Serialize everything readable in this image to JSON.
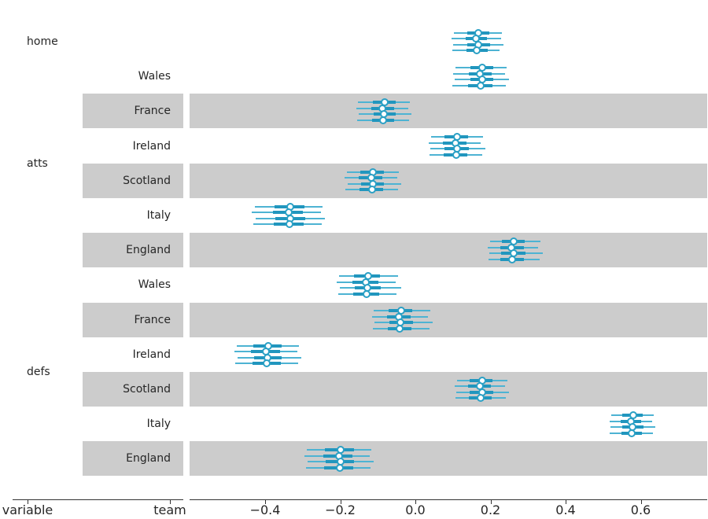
{
  "figure": {
    "background": "#ffffff",
    "band_color": "#cccccc",
    "text_color": "#262626",
    "accent": {
      "interval_thin": "#4db3d3",
      "interval_thick": "#2196be",
      "marker_edge": "#2aa0c5",
      "marker_fill": "#ffffff"
    }
  },
  "axes": {
    "category_axis": {
      "label_variable": "variable",
      "label_team": "team"
    },
    "x_axis": {
      "tick_labels": [
        "−0.4",
        "−0.2",
        "0.0",
        "0.2",
        "0.4",
        "0.6"
      ],
      "tick_values": [
        -0.4,
        -0.2,
        0.0,
        0.2,
        0.4,
        0.6
      ]
    }
  },
  "chart_data": {
    "type": "forest",
    "title": "",
    "xlabel": "",
    "ylabel": "",
    "legend_position": "none",
    "grid": false,
    "n_chains": 4,
    "marker": "open-circle",
    "xlim": [
      -0.6,
      0.78
    ],
    "x_ticks": [
      -0.4,
      -0.2,
      0.0,
      0.2,
      0.4,
      0.6
    ],
    "chain_format": [
      "low",
      "q1",
      "median",
      "q3",
      "high"
    ],
    "groups": [
      {
        "variable": "home",
        "rows": [
          {
            "team": "",
            "chains": [
              [
                0.103,
                0.139,
                0.168,
                0.197,
                0.23
              ],
              [
                0.097,
                0.135,
                0.162,
                0.191,
                0.228
              ],
              [
                0.101,
                0.138,
                0.167,
                0.198,
                0.235
              ],
              [
                0.099,
                0.136,
                0.164,
                0.193,
                0.224
              ]
            ]
          }
        ]
      },
      {
        "variable": "atts",
        "rows": [
          {
            "team": "Wales",
            "chains": [
              [
                0.106,
                0.147,
                0.178,
                0.207,
                0.243
              ],
              [
                0.101,
                0.143,
                0.172,
                0.203,
                0.238
              ],
              [
                0.104,
                0.146,
                0.177,
                0.208,
                0.249
              ],
              [
                0.098,
                0.141,
                0.174,
                0.205,
                0.24
              ]
            ]
          },
          {
            "team": "France",
            "chains": [
              [
                -0.152,
                -0.113,
                -0.082,
                -0.053,
                -0.014
              ],
              [
                -0.157,
                -0.117,
                -0.087,
                -0.057,
                -0.018
              ],
              [
                -0.15,
                -0.112,
                -0.083,
                -0.052,
                -0.01
              ],
              [
                -0.155,
                -0.115,
                -0.085,
                -0.056,
                -0.016
              ]
            ]
          },
          {
            "team": "Ireland",
            "chains": [
              [
                0.041,
                0.078,
                0.11,
                0.14,
                0.18
              ],
              [
                0.036,
                0.074,
                0.106,
                0.136,
                0.174
              ],
              [
                0.04,
                0.077,
                0.111,
                0.142,
                0.186
              ],
              [
                0.038,
                0.075,
                0.108,
                0.138,
                0.178
              ]
            ]
          },
          {
            "team": "Scotland",
            "chains": [
              [
                -0.183,
                -0.146,
                -0.113,
                -0.084,
                -0.044
              ],
              [
                -0.188,
                -0.15,
                -0.118,
                -0.088,
                -0.048
              ],
              [
                -0.181,
                -0.144,
                -0.114,
                -0.083,
                -0.038
              ],
              [
                -0.186,
                -0.148,
                -0.116,
                -0.086,
                -0.046
              ]
            ]
          },
          {
            "team": "Italy",
            "chains": [
              [
                -0.428,
                -0.374,
                -0.332,
                -0.295,
                -0.247
              ],
              [
                -0.436,
                -0.38,
                -0.338,
                -0.3,
                -0.252
              ],
              [
                -0.426,
                -0.372,
                -0.333,
                -0.294,
                -0.241
              ],
              [
                -0.432,
                -0.377,
                -0.336,
                -0.298,
                -0.25
              ]
            ]
          },
          {
            "team": "England",
            "chains": [
              [
                0.198,
                0.23,
                0.262,
                0.292,
                0.332
              ],
              [
                0.193,
                0.226,
                0.256,
                0.288,
                0.326
              ],
              [
                0.197,
                0.229,
                0.261,
                0.293,
                0.339
              ],
              [
                0.195,
                0.227,
                0.258,
                0.29,
                0.33
              ]
            ]
          }
        ]
      },
      {
        "variable": "defs",
        "rows": [
          {
            "team": "Wales",
            "chains": [
              [
                -0.203,
                -0.163,
                -0.126,
                -0.094,
                -0.047
              ],
              [
                -0.209,
                -0.168,
                -0.131,
                -0.098,
                -0.052
              ],
              [
                -0.201,
                -0.161,
                -0.127,
                -0.093,
                -0.038
              ],
              [
                -0.206,
                -0.165,
                -0.129,
                -0.096,
                -0.05
              ]
            ]
          },
          {
            "team": "France",
            "chains": [
              [
                -0.11,
                -0.072,
                -0.038,
                -0.008,
                0.04
              ],
              [
                -0.115,
                -0.076,
                -0.043,
                -0.012,
                0.034
              ],
              [
                -0.108,
                -0.07,
                -0.039,
                -0.007,
                0.046
              ],
              [
                -0.113,
                -0.074,
                -0.041,
                -0.01,
                0.038
              ]
            ]
          },
          {
            "team": "Ireland",
            "chains": [
              [
                -0.476,
                -0.432,
                -0.392,
                -0.357,
                -0.31
              ],
              [
                -0.482,
                -0.437,
                -0.397,
                -0.361,
                -0.315
              ],
              [
                -0.474,
                -0.43,
                -0.393,
                -0.356,
                -0.304
              ],
              [
                -0.479,
                -0.434,
                -0.395,
                -0.359,
                -0.312
              ]
            ]
          },
          {
            "team": "Scotland",
            "chains": [
              [
                0.11,
                0.145,
                0.178,
                0.206,
                0.244
              ],
              [
                0.105,
                0.141,
                0.172,
                0.202,
                0.238
              ],
              [
                0.109,
                0.144,
                0.177,
                0.207,
                0.249
              ],
              [
                0.107,
                0.142,
                0.174,
                0.204,
                0.241
              ]
            ]
          },
          {
            "team": "Italy",
            "chains": [
              [
                0.521,
                0.551,
                0.58,
                0.606,
                0.634
              ],
              [
                0.517,
                0.547,
                0.574,
                0.602,
                0.63
              ],
              [
                0.52,
                0.55,
                0.579,
                0.607,
                0.639
              ],
              [
                0.518,
                0.548,
                0.576,
                0.604,
                0.632
              ]
            ]
          },
          {
            "team": "England",
            "chains": [
              [
                -0.289,
                -0.241,
                -0.199,
                -0.164,
                -0.117
              ],
              [
                -0.295,
                -0.246,
                -0.204,
                -0.168,
                -0.122
              ],
              [
                -0.287,
                -0.239,
                -0.2,
                -0.163,
                -0.111
              ],
              [
                -0.292,
                -0.243,
                -0.202,
                -0.166,
                -0.12
              ]
            ]
          }
        ]
      }
    ]
  }
}
